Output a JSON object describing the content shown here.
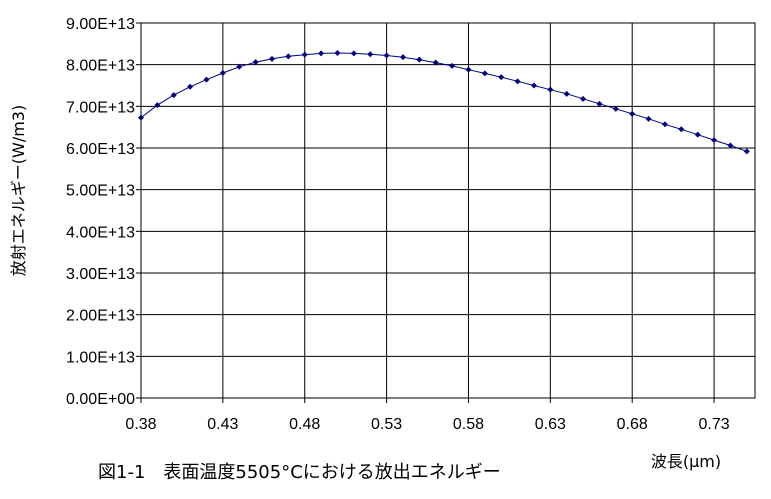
{
  "chart_data": {
    "type": "line",
    "title": "",
    "caption": "図1-1　表面温度5505°Cにおける放出エネルギー",
    "xlabel": "波長(μm)",
    "ylabel": "放射エネルギー(W/m3)",
    "xlim": [
      0.38,
      0.755
    ],
    "ylim": [
      0,
      90000000000000.0
    ],
    "x_ticks": [
      0.38,
      0.43,
      0.48,
      0.53,
      0.58,
      0.63,
      0.68,
      0.73
    ],
    "x_tick_labels": [
      "0.38",
      "0.43",
      "0.48",
      "0.53",
      "0.58",
      "0.63",
      "0.68",
      "0.73"
    ],
    "y_ticks": [
      0,
      10000000000000.0,
      20000000000000.0,
      30000000000000.0,
      40000000000000.0,
      50000000000000.0,
      60000000000000.0,
      70000000000000.0,
      80000000000000.0,
      90000000000000.0
    ],
    "y_tick_labels": [
      "0.00E+00",
      "1.00E+13",
      "2.00E+13",
      "3.00E+13",
      "4.00E+13",
      "5.00E+13",
      "6.00E+13",
      "7.00E+13",
      "8.00E+13",
      "9.00E+13"
    ],
    "grid": true,
    "legend": "none",
    "colors": {
      "series": "#00007f",
      "grid": "#000000"
    },
    "series": [
      {
        "x": [
          0.38,
          0.39,
          0.4,
          0.41,
          0.42,
          0.43,
          0.44,
          0.45,
          0.46,
          0.47,
          0.48,
          0.49,
          0.5,
          0.51,
          0.52,
          0.53,
          0.54,
          0.55,
          0.56,
          0.57,
          0.58,
          0.59,
          0.6,
          0.61,
          0.62,
          0.63,
          0.64,
          0.65,
          0.66,
          0.67,
          0.68,
          0.69,
          0.7,
          0.71,
          0.72,
          0.73,
          0.74,
          0.75
        ],
        "values": [
          67300000000000.0,
          70300000000000.0,
          72700000000000.0,
          74700000000000.0,
          76400000000000.0,
          78000000000000.0,
          79500000000000.0,
          80600000000000.0,
          81400000000000.0,
          82000000000000.0,
          82400000000000.0,
          82700000000000.0,
          82800000000000.0,
          82700000000000.0,
          82500000000000.0,
          82200000000000.0,
          81800000000000.0,
          81200000000000.0,
          80500000000000.0,
          79700000000000.0,
          78800000000000.0,
          77900000000000.0,
          77000000000000.0,
          76000000000000.0,
          75000000000000.0,
          74000000000000.0,
          73000000000000.0,
          71800000000000.0,
          70600000000000.0,
          69400000000000.0,
          68200000000000.0,
          67000000000000.0,
          65700000000000.0,
          64500000000000.0,
          63200000000000.0,
          61900000000000.0,
          60600000000000.0,
          59200000000000.0
        ]
      }
    ]
  }
}
